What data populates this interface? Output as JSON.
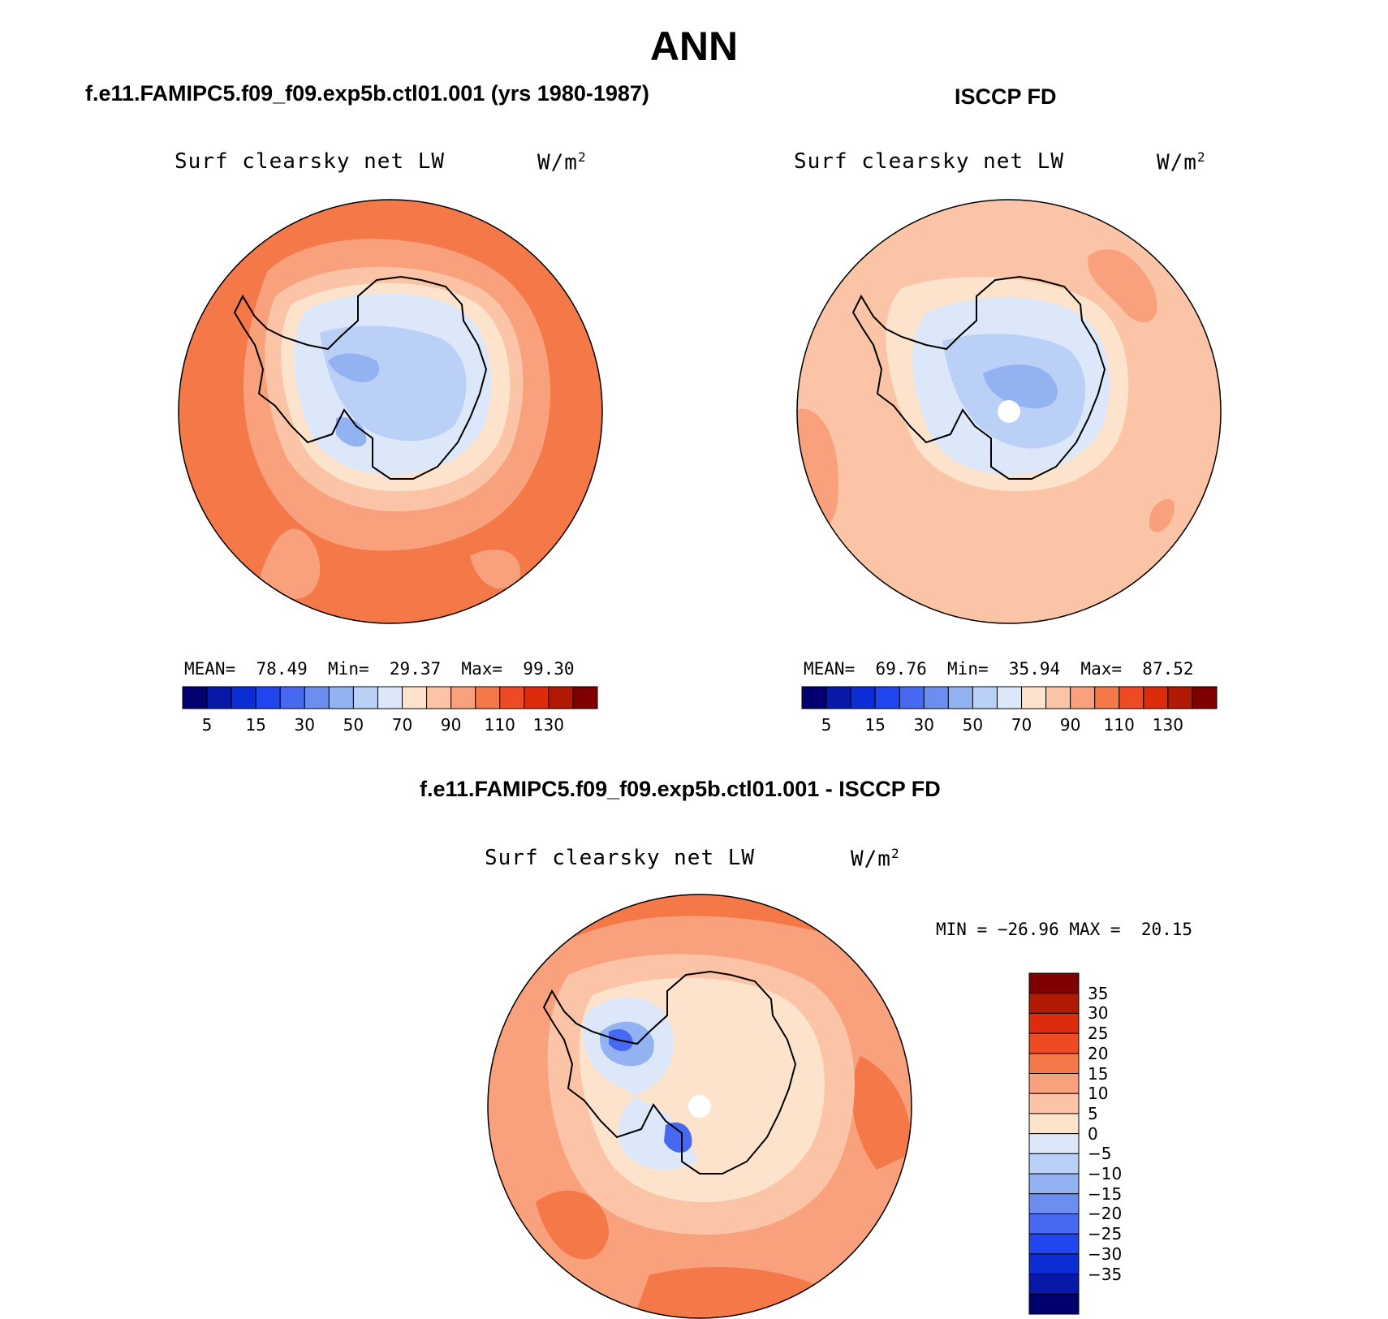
{
  "figure": {
    "season": "ANN",
    "colors": {
      "positive_ramp": [
        "#fde2cc",
        "#fbc4a6",
        "#f9a07c",
        "#f47848",
        "#ee4a24",
        "#dc2c0c",
        "#b01a05",
        "#7e0000"
      ],
      "negative_ramp": [
        "#dce8fa",
        "#bad0f6",
        "#93b2f2",
        "#6c8ef0",
        "#4769f2",
        "#2146f0",
        "#0c2cd6",
        "#0818a8",
        "#00006e"
      ],
      "land_outline": "#000000"
    }
  },
  "panel_model": {
    "title": "f.e11.FAMIPC5.f09_f09.exp5b.ctl01.001 (yrs 1980-1987)",
    "variable": "Surf clearsky net LW",
    "units": "W/m",
    "units_exp": "2",
    "stats": {
      "mean_label": "MEAN=",
      "mean": "78.49",
      "min_label": "Min=",
      "min": "29.37",
      "max_label": "Max=",
      "max": "99.30"
    }
  },
  "panel_obs": {
    "title": "ISCCP FD",
    "variable": "Surf clearsky net LW",
    "units": "W/m",
    "units_exp": "2",
    "stats": {
      "mean_label": "MEAN=",
      "mean": "69.76",
      "min_label": "Min=",
      "min": "35.94",
      "max_label": "Max=",
      "max": "87.52"
    }
  },
  "panel_diff": {
    "title": "f.e11.FAMIPC5.f09_f09.exp5b.ctl01.001 - ISCCP FD",
    "variable": "Surf clearsky net LW",
    "units": "W/m",
    "units_exp": "2",
    "minmax": "MIN = −26.96 MAX =  20.15"
  },
  "colorbar_abs": {
    "colors": [
      "#00006e",
      "#0818a8",
      "#0c2cd6",
      "#2146f0",
      "#4769f2",
      "#6c8ef0",
      "#93b2f2",
      "#bad0f6",
      "#dce8fa",
      "#fde2cc",
      "#fbc4a6",
      "#f9a07c",
      "#f47848",
      "#ee4a24",
      "#dc2c0c",
      "#b01a05",
      "#7e0000"
    ],
    "tick_labels": [
      "5",
      "15",
      "30",
      "50",
      "70",
      "90",
      "110",
      "130"
    ],
    "tick_boundary_index": [
      1,
      3,
      5,
      7,
      9,
      11,
      13,
      15
    ]
  },
  "colorbar_diff": {
    "colors_top_to_bottom": [
      "#7e0000",
      "#b01a05",
      "#dc2c0c",
      "#ee4a24",
      "#f47848",
      "#f9a07c",
      "#fbc4a6",
      "#fde2cc",
      "#dce8fa",
      "#bad0f6",
      "#93b2f2",
      "#6c8ef0",
      "#4769f2",
      "#2146f0",
      "#0c2cd6",
      "#0818a8",
      "#00006e"
    ],
    "tick_labels": [
      "35",
      "30",
      "25",
      "20",
      "15",
      "10",
      "5",
      "0",
      "−5",
      "−10",
      "−15",
      "−20",
      "−25",
      "−30",
      "−35"
    ]
  }
}
